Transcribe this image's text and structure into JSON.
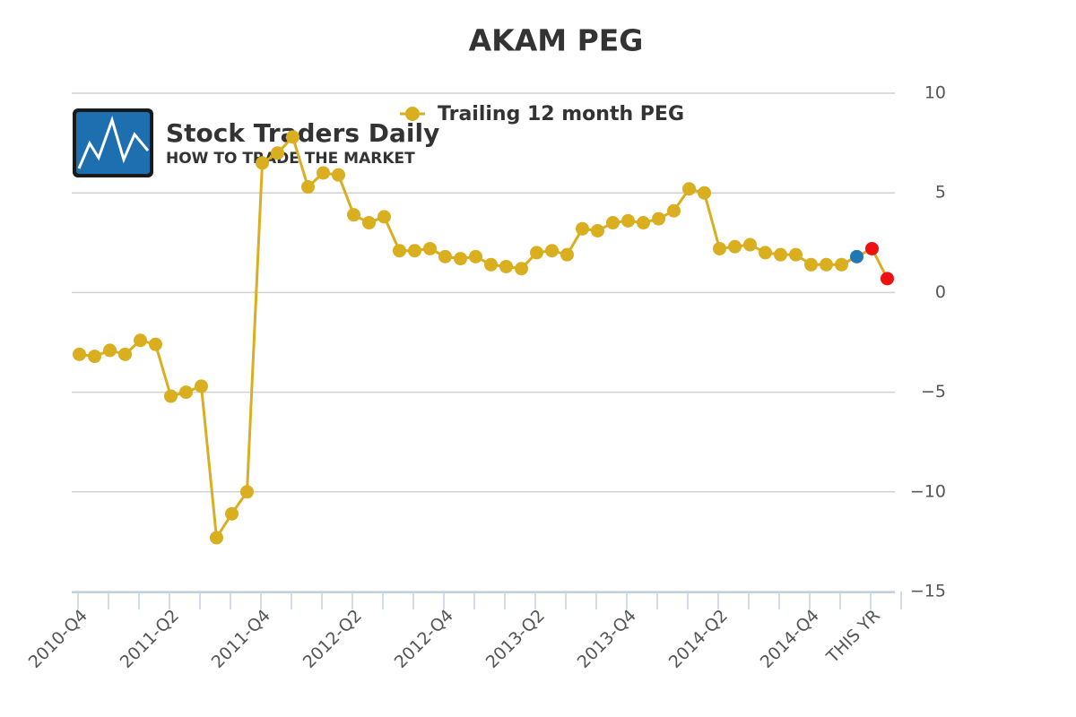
{
  "logo": {
    "title": "Stock Traders Daily",
    "subtitle": "HOW TO TRADE THE MARKET"
  },
  "chart_data": {
    "type": "line",
    "title": "AKAM PEG",
    "categories": [
      "2010-Q4",
      null,
      null,
      null,
      null,
      null,
      "2011-Q2",
      null,
      null,
      null,
      null,
      null,
      "2011-Q4",
      null,
      null,
      null,
      null,
      null,
      "2012-Q2",
      null,
      null,
      null,
      null,
      null,
      "2012-Q4",
      null,
      null,
      null,
      null,
      null,
      "2013-Q2",
      null,
      null,
      null,
      null,
      null,
      "2013-Q4",
      null,
      null,
      null,
      null,
      null,
      "2014-Q2",
      null,
      null,
      null,
      null,
      null,
      "2014-Q4",
      null,
      null,
      null,
      "THIS YR",
      null
    ],
    "series": [
      {
        "name": "Trailing 12 month PEG",
        "color": "#d9ae1f",
        "values": [
          -3.1,
          -3.2,
          -2.9,
          -3.1,
          -2.4,
          -2.6,
          -5.2,
          -5.0,
          -4.7,
          -12.3,
          -11.1,
          -10.0,
          6.5,
          7.0,
          7.8,
          5.3,
          6.0,
          5.9,
          3.9,
          3.5,
          3.8,
          2.1,
          2.1,
          2.2,
          1.8,
          1.7,
          1.8,
          1.4,
          1.3,
          1.2,
          2.0,
          2.1,
          1.9,
          3.2,
          3.1,
          3.5,
          3.6,
          3.5,
          3.7,
          4.1,
          5.2,
          5.0,
          2.2,
          2.3,
          2.4,
          2.0,
          1.9,
          1.9,
          1.4,
          1.4,
          1.4,
          1.8,
          2.2,
          0.7
        ],
        "point_colors": [
          null,
          null,
          null,
          null,
          null,
          null,
          null,
          null,
          null,
          null,
          null,
          null,
          null,
          null,
          null,
          null,
          null,
          null,
          null,
          null,
          null,
          null,
          null,
          null,
          null,
          null,
          null,
          null,
          null,
          null,
          null,
          null,
          null,
          null,
          null,
          null,
          null,
          null,
          null,
          null,
          null,
          null,
          null,
          null,
          null,
          null,
          null,
          null,
          null,
          null,
          null,
          "#1f77b4",
          "#ee1111",
          "#ee1111"
        ]
      }
    ],
    "ylim": [
      -15,
      10
    ],
    "yticks": [
      -15,
      -10,
      -5,
      0,
      5,
      10
    ],
    "yticks_labels": [
      {
        "value": -15,
        "label": "−15"
      },
      {
        "value": -10,
        "label": "−10"
      },
      {
        "value": -5,
        "label": "−5"
      }
    ],
    "grid": true,
    "legend": "top"
  }
}
